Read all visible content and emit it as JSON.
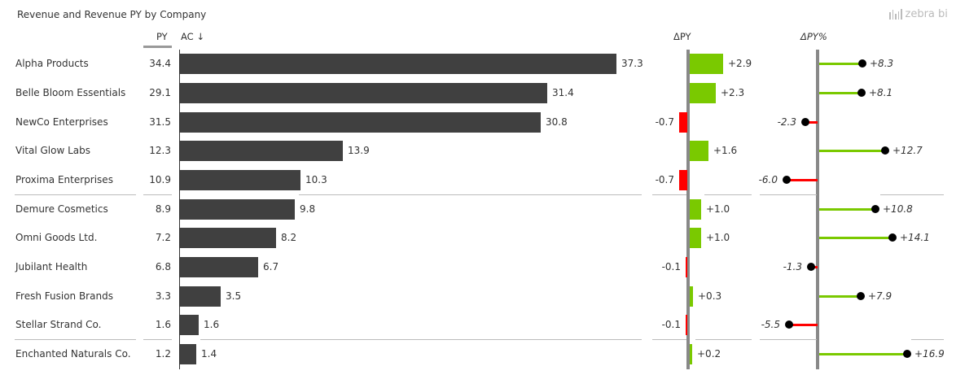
{
  "header": {
    "title": "Revenue and Revenue PY by Company",
    "logo_text": "zebra bi",
    "col_py": "PY",
    "col_ac": "AC ↓",
    "col_dpy": "ΔPY",
    "col_dpy_pct": "ΔPY%"
  },
  "colors": {
    "ac_bar": "#404040",
    "positive": "#7ac900",
    "negative": "#ff0000",
    "axis": "#888888"
  },
  "rows": [
    {
      "name": "Alpha Products",
      "py": "34.4",
      "ac": "37.3",
      "dpy": "+2.9",
      "dpy_pct": "+8.3"
    },
    {
      "name": "Belle Bloom Essentials",
      "py": "29.1",
      "ac": "31.4",
      "dpy": "+2.3",
      "dpy_pct": "+8.1"
    },
    {
      "name": "NewCo Enterprises",
      "py": "31.5",
      "ac": "30.8",
      "dpy": "-0.7",
      "dpy_pct": "-2.3"
    },
    {
      "name": "Vital Glow Labs",
      "py": "12.3",
      "ac": "13.9",
      "dpy": "+1.6",
      "dpy_pct": "+12.7"
    },
    {
      "name": "Proxima Enterprises",
      "py": "10.9",
      "ac": "10.3",
      "dpy": "-0.7",
      "dpy_pct": "-6.0"
    },
    {
      "name": "Demure Cosmetics",
      "py": "8.9",
      "ac": "9.8",
      "dpy": "+1.0",
      "dpy_pct": "+10.8"
    },
    {
      "name": "Omni Goods Ltd.",
      "py": "7.2",
      "ac": "8.2",
      "dpy": "+1.0",
      "dpy_pct": "+14.1"
    },
    {
      "name": "Jubilant Health",
      "py": "6.8",
      "ac": "6.7",
      "dpy": "-0.1",
      "dpy_pct": "-1.3"
    },
    {
      "name": "Fresh Fusion Brands",
      "py": "3.3",
      "ac": "3.5",
      "dpy": "+0.3",
      "dpy_pct": "+7.9"
    },
    {
      "name": "Stellar Strand Co.",
      "py": "1.6",
      "ac": "1.6",
      "dpy": "-0.1",
      "dpy_pct": "-5.5"
    },
    {
      "name": "Enchanted Naturals Co.",
      "py": "1.2",
      "ac": "1.4",
      "dpy": "+0.2",
      "dpy_pct": "+16.9"
    }
  ],
  "chart_data": {
    "type": "bar",
    "title": "Revenue and Revenue PY by Company",
    "categories": [
      "Alpha Products",
      "Belle Bloom Essentials",
      "NewCo Enterprises",
      "Vital Glow Labs",
      "Proxima Enterprises",
      "Demure Cosmetics",
      "Omni Goods Ltd.",
      "Jubilant Health",
      "Fresh Fusion Brands",
      "Stellar Strand Co.",
      "Enchanted Naturals Co."
    ],
    "series": [
      {
        "name": "PY",
        "values": [
          34.4,
          29.1,
          31.5,
          12.3,
          10.9,
          8.9,
          7.2,
          6.8,
          3.3,
          1.6,
          1.2
        ]
      },
      {
        "name": "AC",
        "values": [
          37.3,
          31.4,
          30.8,
          13.9,
          10.3,
          9.8,
          8.2,
          6.7,
          3.5,
          1.6,
          1.4
        ]
      },
      {
        "name": "ΔPY",
        "values": [
          2.9,
          2.3,
          -0.7,
          1.6,
          -0.7,
          1.0,
          1.0,
          -0.1,
          0.3,
          -0.1,
          0.2
        ]
      },
      {
        "name": "ΔPY%",
        "values": [
          8.3,
          8.1,
          -2.3,
          12.7,
          -6.0,
          10.8,
          14.1,
          -1.3,
          7.9,
          -5.5,
          16.9
        ]
      }
    ],
    "sort": "AC descending",
    "xlabel": "",
    "ylabel": "",
    "legend": "column headers"
  }
}
